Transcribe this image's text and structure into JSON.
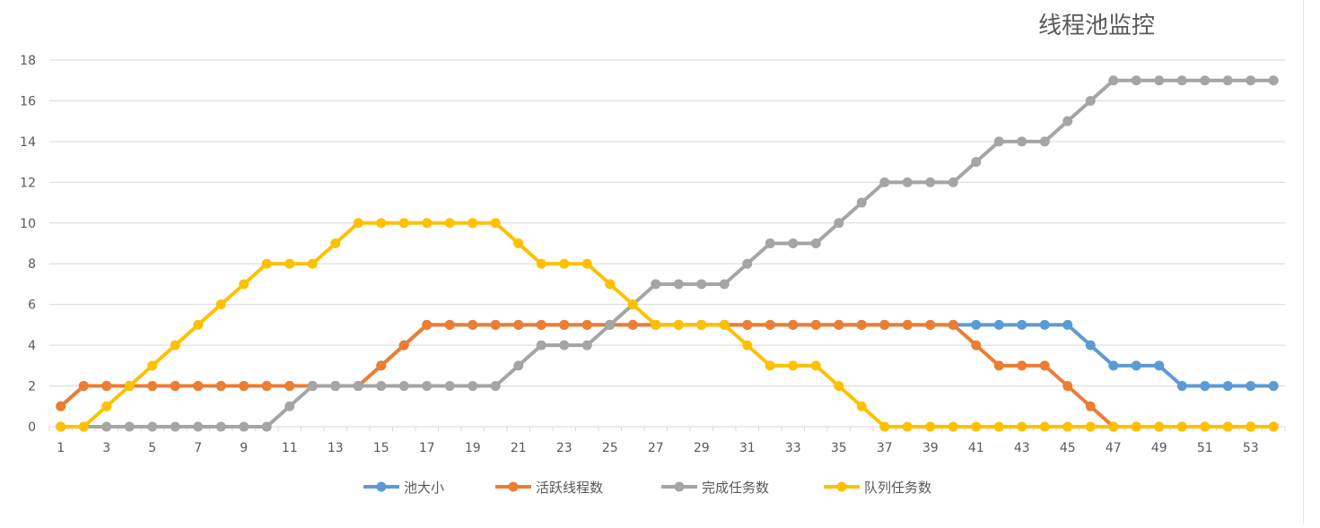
{
  "chart_data": {
    "type": "line",
    "title": "线程池监控",
    "xlabel": "",
    "ylabel": "",
    "x": [
      1,
      2,
      3,
      4,
      5,
      6,
      7,
      8,
      9,
      10,
      11,
      12,
      13,
      14,
      15,
      16,
      17,
      18,
      19,
      20,
      21,
      22,
      23,
      24,
      25,
      26,
      27,
      28,
      29,
      30,
      31,
      32,
      33,
      34,
      35,
      36,
      37,
      38,
      39,
      40,
      41,
      42,
      43,
      44,
      45,
      46,
      47,
      48,
      49,
      50,
      51,
      52,
      53,
      54
    ],
    "x_tick_labels": [
      "1",
      "3",
      "5",
      "7",
      "9",
      "11",
      "13",
      "15",
      "17",
      "19",
      "21",
      "23",
      "25",
      "27",
      "29",
      "31",
      "33",
      "35",
      "37",
      "39",
      "41",
      "43",
      "45",
      "47",
      "49",
      "51",
      "53"
    ],
    "ylim": [
      0,
      18
    ],
    "y_ticks": [
      "0",
      "2",
      "4",
      "6",
      "8",
      "10",
      "12",
      "14",
      "16",
      "18"
    ],
    "grid": true,
    "legend_position": "bottom",
    "series": [
      {
        "name": "池大小",
        "color": "#5b9bd5",
        "values": [
          1,
          2,
          2,
          2,
          2,
          2,
          2,
          2,
          2,
          2,
          2,
          2,
          2,
          2,
          3,
          4,
          5,
          5,
          5,
          5,
          5,
          5,
          5,
          5,
          5,
          5,
          5,
          5,
          5,
          5,
          5,
          5,
          5,
          5,
          5,
          5,
          5,
          5,
          5,
          5,
          5,
          5,
          5,
          5,
          5,
          4,
          3,
          3,
          3,
          2,
          2,
          2,
          2,
          2
        ]
      },
      {
        "name": "活跃线程数",
        "color": "#ed7d31",
        "values": [
          1,
          2,
          2,
          2,
          2,
          2,
          2,
          2,
          2,
          2,
          2,
          2,
          2,
          2,
          3,
          4,
          5,
          5,
          5,
          5,
          5,
          5,
          5,
          5,
          5,
          5,
          5,
          5,
          5,
          5,
          5,
          5,
          5,
          5,
          5,
          5,
          5,
          5,
          5,
          5,
          4,
          3,
          3,
          3,
          2,
          1,
          0,
          0,
          0,
          0,
          0,
          0,
          0,
          0
        ]
      },
      {
        "name": "完成任务数",
        "color": "#a5a5a5",
        "values": [
          0,
          0,
          0,
          0,
          0,
          0,
          0,
          0,
          0,
          0,
          1,
          2,
          2,
          2,
          2,
          2,
          2,
          2,
          2,
          2,
          3,
          4,
          4,
          4,
          5,
          6,
          7,
          7,
          7,
          7,
          8,
          9,
          9,
          9,
          10,
          11,
          12,
          12,
          12,
          12,
          13,
          14,
          14,
          14,
          15,
          16,
          17,
          17,
          17,
          17,
          17,
          17,
          17,
          17
        ]
      },
      {
        "name": "队列任务数",
        "color": "#ffc000",
        "values": [
          0,
          0,
          1,
          2,
          3,
          4,
          5,
          6,
          7,
          8,
          8,
          8,
          9,
          10,
          10,
          10,
          10,
          10,
          10,
          10,
          9,
          8,
          8,
          8,
          7,
          6,
          5,
          5,
          5,
          5,
          4,
          3,
          3,
          3,
          2,
          1,
          0,
          0,
          0,
          0,
          0,
          0,
          0,
          0,
          0,
          0,
          0,
          0,
          0,
          0,
          0,
          0,
          0,
          0
        ]
      }
    ]
  }
}
